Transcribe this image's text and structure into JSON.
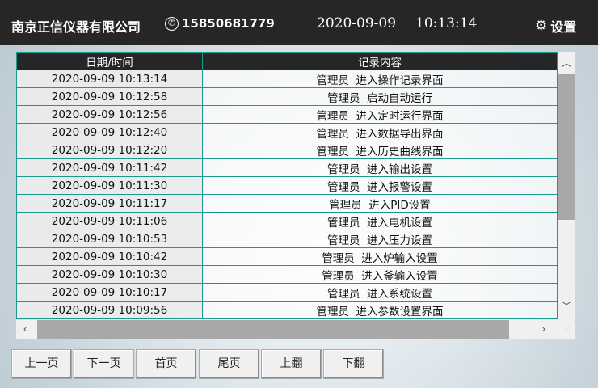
{
  "header": {
    "company": "南京正信仪器有限公司",
    "phone": "15850681779",
    "date": "2020-09-09",
    "time": "10:13:14",
    "settings_label": "设置",
    "phone_icon": "phone-icon",
    "settings_icon": "gear-icon"
  },
  "table": {
    "columns": [
      "日期/时间",
      "记录内容"
    ],
    "rows": [
      [
        "2020-09-09 10:13:14",
        "管理员  进入操作记录界面"
      ],
      [
        "2020-09-09 10:12:58",
        "管理员  启动自动运行"
      ],
      [
        "2020-09-09 10:12:56",
        "管理员  进入定时运行界面"
      ],
      [
        "2020-09-09 10:12:40",
        "管理员  进入数据导出界面"
      ],
      [
        "2020-09-09 10:12:20",
        "管理员  进入历史曲线界面"
      ],
      [
        "2020-09-09 10:11:42",
        "管理员  进入输出设置"
      ],
      [
        "2020-09-09 10:11:30",
        "管理员  进入报警设置"
      ],
      [
        "2020-09-09 10:11:17",
        "管理员  进入PID设置"
      ],
      [
        "2020-09-09 10:11:06",
        "管理员  进入电机设置"
      ],
      [
        "2020-09-09 10:10:53",
        "管理员  进入压力设置"
      ],
      [
        "2020-09-09 10:10:42",
        "管理员  进入炉输入设置"
      ],
      [
        "2020-09-09 10:10:30",
        "管理员  进入釜输入设置"
      ],
      [
        "2020-09-09 10:10:17",
        "管理员  进入系统设置"
      ],
      [
        "2020-09-09 10:09:56",
        "管理员  进入参数设置界面"
      ]
    ]
  },
  "buttons": [
    "上一页",
    "下一页",
    "首页",
    "尾页",
    "上翻",
    "下翻"
  ],
  "colors": {
    "header_bg": "#262626",
    "grid_line": "#1a9a8a"
  }
}
